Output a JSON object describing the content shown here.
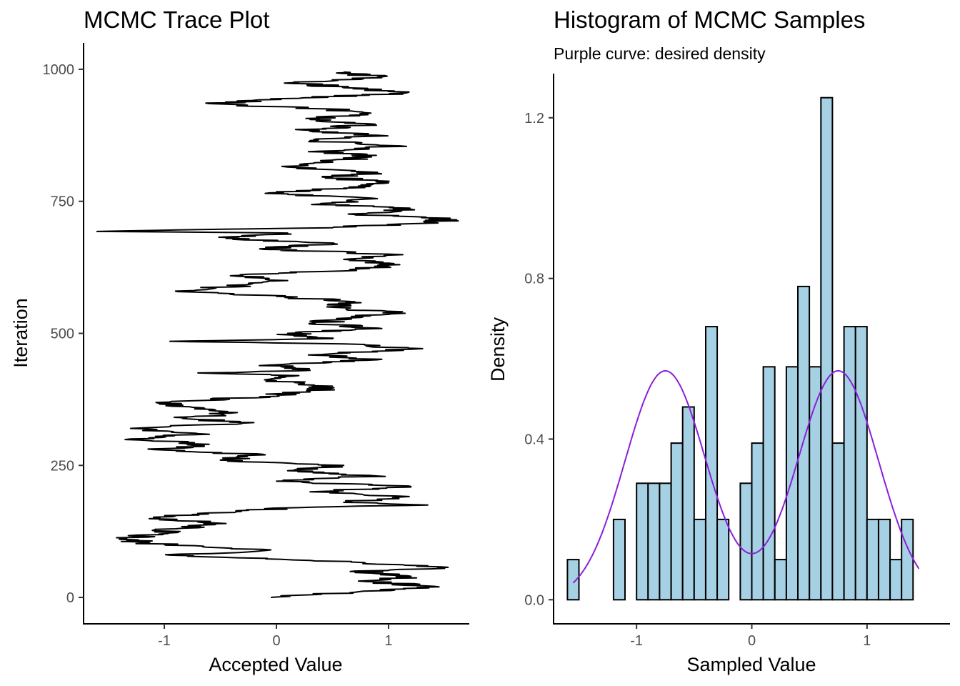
{
  "chart_data": [
    {
      "type": "line",
      "title": "MCMC Trace Plot",
      "xlabel": "Accepted Value",
      "ylabel": "Iteration",
      "xlim": [
        -1.72,
        1.72
      ],
      "ylim": [
        -50,
        1050
      ],
      "xticks": [
        -1,
        0,
        1
      ],
      "xtick_labels": [
        "-1",
        "0",
        "1"
      ],
      "yticks": [
        0,
        250,
        500,
        750,
        1000
      ],
      "ytick_labels": [
        "0",
        "250",
        "500",
        "750",
        "1000"
      ],
      "grid": false,
      "legend": "none",
      "series_color": "#000000",
      "points": [
        [
          0,
          -0.05
        ],
        [
          10,
          0.7
        ],
        [
          20,
          1.45
        ],
        [
          30,
          0.8
        ],
        [
          40,
          1.2
        ],
        [
          50,
          0.7
        ],
        [
          55,
          1.5
        ],
        [
          60,
          1.35
        ],
        [
          70,
          0.3
        ],
        [
          80,
          -0.95
        ],
        [
          90,
          -0.05
        ],
        [
          100,
          -1.0
        ],
        [
          110,
          -1.4
        ],
        [
          120,
          -1.05
        ],
        [
          130,
          -0.9
        ],
        [
          140,
          -0.45
        ],
        [
          150,
          -1.05
        ],
        [
          160,
          -0.6
        ],
        [
          170,
          0.2
        ],
        [
          175,
          1.35
        ],
        [
          180,
          0.6
        ],
        [
          190,
          1.1
        ],
        [
          200,
          0.3
        ],
        [
          210,
          1.2
        ],
        [
          220,
          0.0
        ],
        [
          230,
          0.9
        ],
        [
          240,
          0.1
        ],
        [
          250,
          0.6
        ],
        [
          260,
          -0.5
        ],
        [
          270,
          -0.1
        ],
        [
          280,
          -1.1
        ],
        [
          290,
          -0.6
        ],
        [
          300,
          -1.3
        ],
        [
          310,
          -0.7
        ],
        [
          320,
          -1.3
        ],
        [
          330,
          -0.3
        ],
        [
          340,
          -0.8
        ],
        [
          350,
          -0.35
        ],
        [
          360,
          -0.75
        ],
        [
          370,
          -0.95
        ],
        [
          380,
          -0.15
        ],
        [
          390,
          0.3
        ],
        [
          400,
          0.5
        ],
        [
          410,
          0.0
        ],
        [
          420,
          0.2
        ],
        [
          425,
          -0.7
        ],
        [
          430,
          0.3
        ],
        [
          440,
          -0.05
        ],
        [
          450,
          0.9
        ],
        [
          460,
          0.4
        ],
        [
          470,
          1.2
        ],
        [
          480,
          0.6
        ],
        [
          485,
          -0.95
        ],
        [
          490,
          0.5
        ],
        [
          500,
          0.1
        ],
        [
          510,
          0.9
        ],
        [
          520,
          0.35
        ],
        [
          530,
          0.75
        ],
        [
          540,
          1.05
        ],
        [
          550,
          0.45
        ],
        [
          560,
          0.7
        ],
        [
          570,
          0.0
        ],
        [
          580,
          -0.9
        ],
        [
          590,
          -0.35
        ],
        [
          600,
          0.1
        ],
        [
          610,
          -0.3
        ],
        [
          620,
          0.65
        ],
        [
          630,
          1.1
        ],
        [
          640,
          0.6
        ],
        [
          650,
          1.0
        ],
        [
          660,
          -0.15
        ],
        [
          670,
          0.5
        ],
        [
          680,
          -0.45
        ],
        [
          690,
          0.1
        ],
        [
          693,
          -1.6
        ],
        [
          700,
          0.5
        ],
        [
          710,
          1.4
        ],
        [
          718,
          1.55
        ],
        [
          725,
          0.7
        ],
        [
          735,
          1.2
        ],
        [
          745,
          0.4
        ],
        [
          755,
          0.9
        ],
        [
          765,
          -0.1
        ],
        [
          775,
          0.6
        ],
        [
          785,
          1.0
        ],
        [
          795,
          0.5
        ],
        [
          805,
          0.9
        ],
        [
          815,
          0.1
        ],
        [
          825,
          0.5
        ],
        [
          835,
          0.8
        ],
        [
          845,
          0.4
        ],
        [
          855,
          1.1
        ],
        [
          865,
          0.3
        ],
        [
          875,
          0.9
        ],
        [
          885,
          0.25
        ],
        [
          895,
          0.8
        ],
        [
          905,
          0.3
        ],
        [
          915,
          0.75
        ],
        [
          925,
          0.45
        ],
        [
          935,
          -0.6
        ],
        [
          945,
          0.2
        ],
        [
          955,
          1.15
        ],
        [
          965,
          0.6
        ],
        [
          975,
          0.2
        ],
        [
          985,
          0.9
        ],
        [
          995,
          0.6
        ]
      ]
    },
    {
      "type": "bar",
      "title": "Histogram of MCMC Samples",
      "subtitle": "Purple curve: desired density",
      "xlabel": "Sampled Value",
      "ylabel": "Density",
      "xlim": [
        -1.72,
        1.72
      ],
      "ylim": [
        -0.06,
        1.31
      ],
      "xticks": [
        -1,
        0,
        1
      ],
      "xtick_labels": [
        "-1",
        "0",
        "1"
      ],
      "yticks": [
        0.0,
        0.4,
        0.8,
        1.2
      ],
      "ytick_labels": [
        "0.0",
        "0.4",
        "0.8",
        "1.2"
      ],
      "grid": false,
      "legend": "none",
      "bar_fill": "#a6d0e3",
      "bar_outline": "#000000",
      "curve_color": "#8b1fd9",
      "bin_width": 0.1,
      "bin_start": -1.6,
      "densities": [
        0.1,
        0,
        0,
        0,
        0.2,
        0,
        0.29,
        0.29,
        0.29,
        0.39,
        0.48,
        0.2,
        0.68,
        0.2,
        0,
        0.29,
        0.39,
        0.58,
        0.1,
        0.58,
        0.78,
        0.58,
        1.25,
        0.39,
        0.68,
        0.68,
        0.2,
        0.2,
        0.1,
        0.2
      ],
      "curve": {
        "description_formula": "mixture of two normals",
        "means": [
          -0.75,
          0.75
        ],
        "sd": 0.35,
        "weights": [
          0.5,
          0.5
        ],
        "x_range": [
          -1.55,
          1.45
        ]
      }
    }
  ]
}
